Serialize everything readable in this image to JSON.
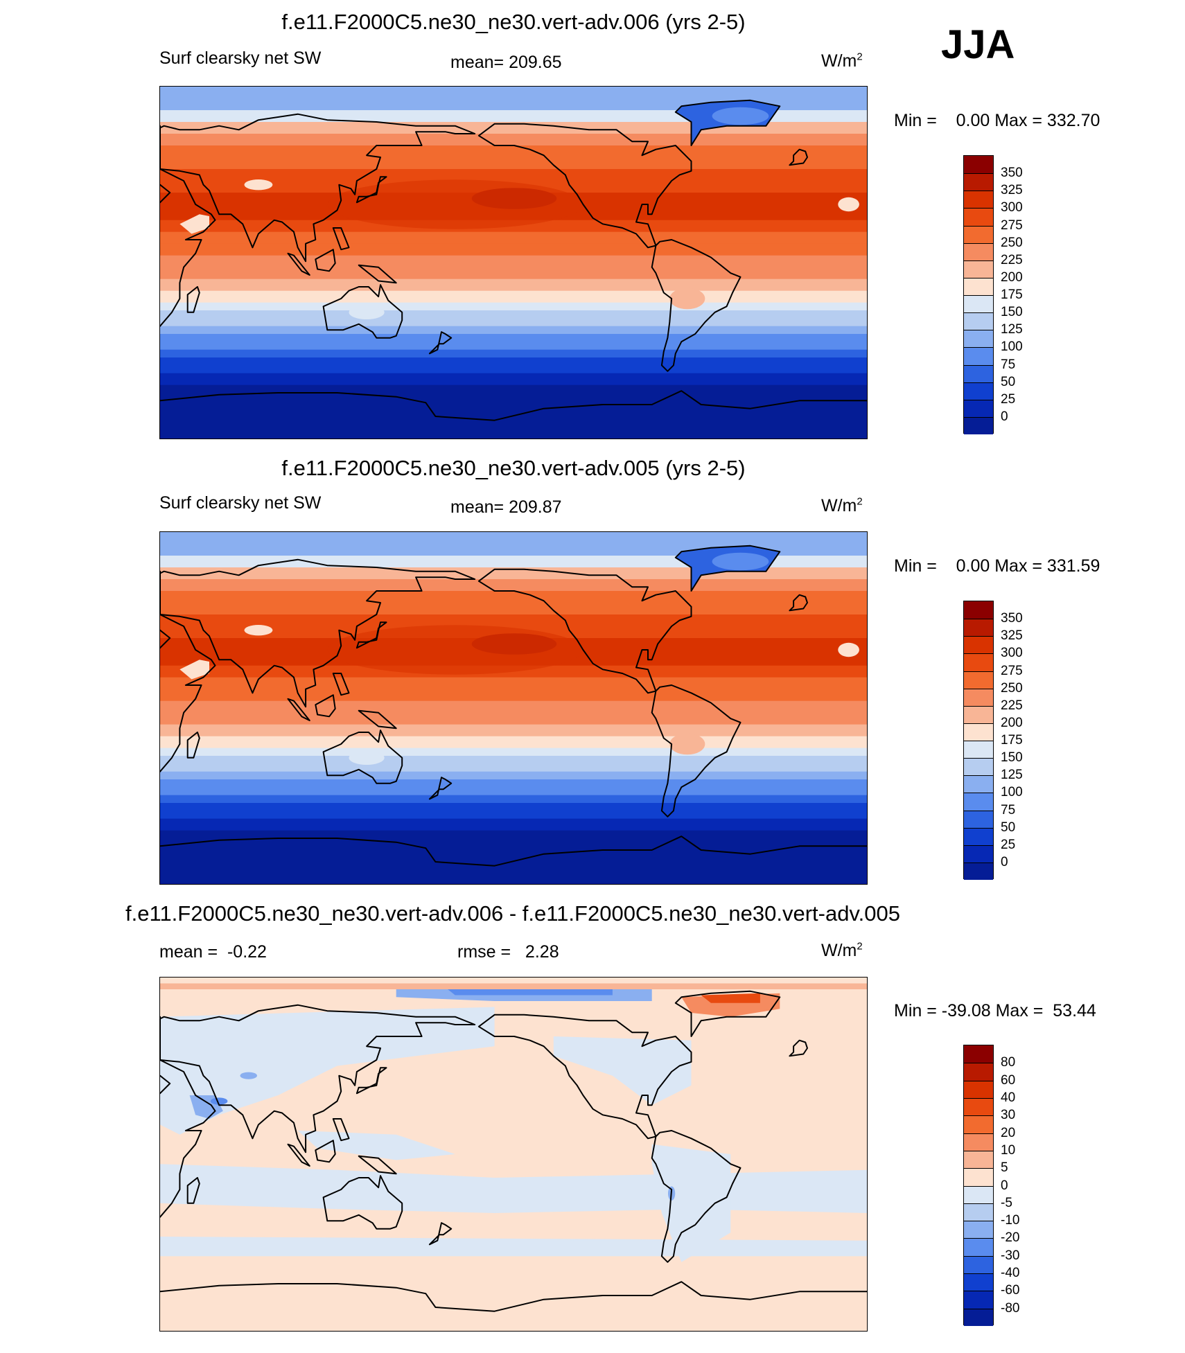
{
  "season": "JJA",
  "panels": [
    {
      "title": "f.e11.F2000C5.ne30_ne30.vert-adv.006 (yrs 2-5)",
      "left_label": "Surf clearsky net SW",
      "center_label": "mean= 209.65",
      "unit_base": "W/m",
      "unit_exp": "2",
      "minmax": "Min =    0.00 Max = 332.70",
      "kind": "field",
      "levels": [
        "350",
        "325",
        "300",
        "275",
        "250",
        "225",
        "200",
        "175",
        "150",
        "125",
        "100",
        "75",
        "50",
        "25",
        "0"
      ],
      "colors": [
        "#8b0000",
        "#b81a00",
        "#d93300",
        "#e84a10",
        "#f26b2f",
        "#f58b60",
        "#f8b596",
        "#fde2d0",
        "#dbe7f5",
        "#b6cdf0",
        "#8aaff0",
        "#5a8cee",
        "#2d63e0",
        "#1040cf",
        "#0628b4",
        "#051d96"
      ],
      "mean_value": 209.65,
      "min_value": 0.0,
      "max_value": 332.7
    },
    {
      "title": "f.e11.F2000C5.ne30_ne30.vert-adv.005 (yrs 2-5)",
      "left_label": "Surf clearsky net SW",
      "center_label": "mean= 209.87",
      "unit_base": "W/m",
      "unit_exp": "2",
      "minmax": "Min =    0.00 Max = 331.59",
      "kind": "field",
      "levels": [
        "350",
        "325",
        "300",
        "275",
        "250",
        "225",
        "200",
        "175",
        "150",
        "125",
        "100",
        "75",
        "50",
        "25",
        "0"
      ],
      "colors": [
        "#8b0000",
        "#b81a00",
        "#d93300",
        "#e84a10",
        "#f26b2f",
        "#f58b60",
        "#f8b596",
        "#fde2d0",
        "#dbe7f5",
        "#b6cdf0",
        "#8aaff0",
        "#5a8cee",
        "#2d63e0",
        "#1040cf",
        "#0628b4",
        "#051d96"
      ],
      "mean_value": 209.87,
      "min_value": 0.0,
      "max_value": 331.59
    },
    {
      "title": "f.e11.F2000C5.ne30_ne30.vert-adv.006 - f.e11.F2000C5.ne30_ne30.vert-adv.005",
      "left_label": "mean =  -0.22",
      "center_label": "rmse =   2.28",
      "unit_base": "W/m",
      "unit_exp": "2",
      "minmax": "Min = -39.08 Max =  53.44",
      "kind": "diff",
      "levels": [
        "80",
        "60",
        "40",
        "30",
        "20",
        "10",
        "5",
        "0",
        "-5",
        "-10",
        "-20",
        "-30",
        "-40",
        "-60",
        "-80"
      ],
      "colors": [
        "#8b0000",
        "#b81a00",
        "#d93300",
        "#e84a10",
        "#f26b2f",
        "#f58b60",
        "#f8b596",
        "#fde2d0",
        "#dbe7f5",
        "#b6cdf0",
        "#8aaff0",
        "#5a8cee",
        "#2d63e0",
        "#1040cf",
        "#0628b4",
        "#051d96"
      ],
      "mean_value": -0.22,
      "rmse_value": 2.28,
      "min_value": -39.08,
      "max_value": 53.44
    }
  ]
}
